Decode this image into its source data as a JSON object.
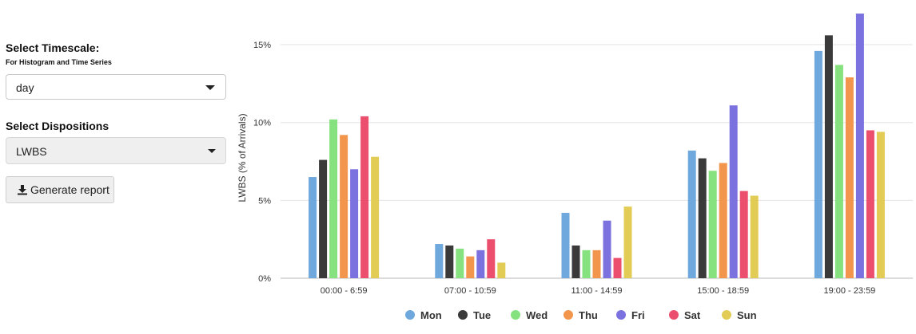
{
  "sidebar": {
    "timescale_label": "Select Timescale:",
    "timescale_sublabel": "For Histogram and Time Series",
    "timescale_value": "day",
    "dispositions_label": "Select Dispositions",
    "dispositions_value": "LWBS",
    "generate_button_label": "Generate report",
    "download_icon": "download-icon"
  },
  "chart_data": {
    "type": "bar",
    "ylabel": "LWBS (% of Arrivals)",
    "xlabel": "",
    "ylim": [
      0,
      17
    ],
    "yticks": [
      0,
      5,
      10,
      15
    ],
    "ytick_labels": [
      "0%",
      "5%",
      "10%",
      "15%"
    ],
    "grid": true,
    "legend_position": "bottom",
    "categories": [
      "00:00 - 6:59",
      "07:00 - 10:59",
      "11:00 - 14:59",
      "15:00 - 18:59",
      "19:00 - 23:59"
    ],
    "series": [
      {
        "name": "Mon",
        "color": "#6fa8dc",
        "values": [
          6.5,
          2.2,
          4.2,
          8.2,
          14.6
        ]
      },
      {
        "name": "Tue",
        "color": "#3a3a3a",
        "values": [
          7.6,
          2.1,
          2.1,
          7.7,
          15.6
        ]
      },
      {
        "name": "Wed",
        "color": "#86e27e",
        "values": [
          10.2,
          1.9,
          1.8,
          6.9,
          13.7
        ]
      },
      {
        "name": "Thu",
        "color": "#f3964d",
        "values": [
          9.2,
          1.4,
          1.8,
          7.4,
          12.9
        ]
      },
      {
        "name": "Fri",
        "color": "#7b72e0",
        "values": [
          7.0,
          1.8,
          3.7,
          11.1,
          17.0
        ]
      },
      {
        "name": "Sat",
        "color": "#ec4f6e",
        "values": [
          10.4,
          2.5,
          1.3,
          5.6,
          9.5
        ]
      },
      {
        "name": "Sun",
        "color": "#e3cc55",
        "values": [
          7.8,
          1.0,
          4.6,
          5.3,
          9.4
        ]
      }
    ]
  }
}
